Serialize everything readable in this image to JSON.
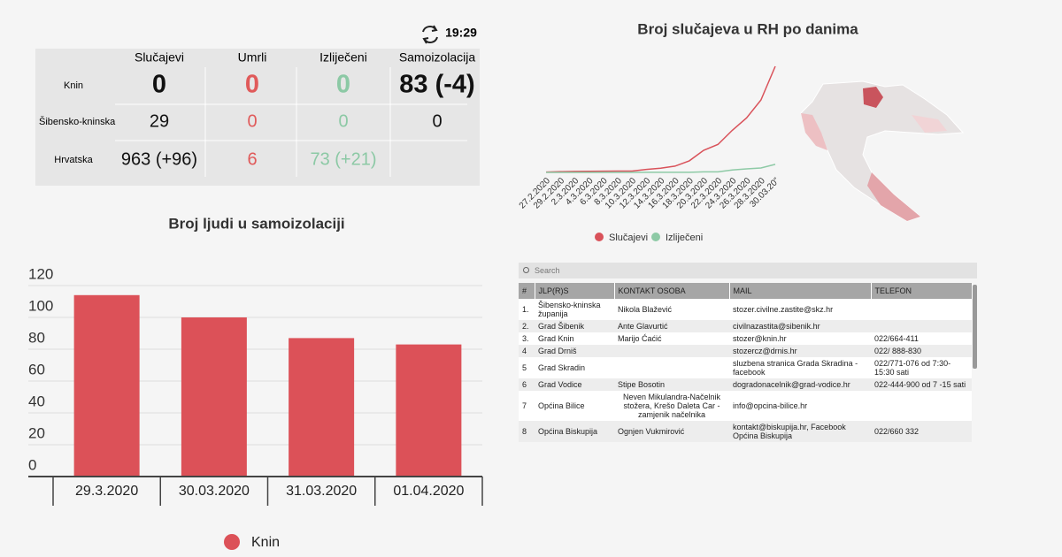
{
  "stats": {
    "time": "19:29",
    "columns": [
      "Slučajevi",
      "Umrli",
      "Izliječeni",
      "Samoizolacija"
    ],
    "rows": [
      {
        "name": "Knin",
        "cells": [
          "0",
          "0",
          "0",
          "83 (-4)"
        ]
      },
      {
        "name": "Šibensko-kninska",
        "cells": [
          "29",
          "0",
          "0",
          "0"
        ]
      },
      {
        "name": "Hrvatska",
        "cells": [
          "963 (+96)",
          "6",
          "73 (+21)"
        ]
      }
    ]
  },
  "chart_data": [
    {
      "type": "line",
      "title": "Broj slučajeva u RH po danima",
      "categories": [
        "27.2.2020",
        "29.2.2020",
        "2.3.2020",
        "4.3.2020",
        "6.3.2020",
        "8.3.2020",
        "10.3.2020",
        "12.3.2020",
        "14.3.2020",
        "16.3.2020",
        "18.3.2020",
        "20.3.2020",
        "22.3.2020",
        "24.3.2020",
        "26.3.2020",
        "28.3.2020",
        "30.03.20”"
      ],
      "series": [
        {
          "name": "Slučajevi",
          "color": "#d9525a",
          "values": [
            3,
            7,
            9,
            10,
            11,
            12,
            12,
            27,
            38,
            57,
            105,
            200,
            254,
            382,
            495,
            657,
            963
          ]
        },
        {
          "name": "Izliječeni",
          "color": "#8ecaa6",
          "values": [
            0,
            0,
            0,
            0,
            0,
            0,
            0,
            1,
            1,
            1,
            1,
            5,
            5,
            22,
            32,
            40,
            73
          ]
        }
      ]
    },
    {
      "type": "bar",
      "title": "Broj ljudi u samoizolaciji",
      "categories": [
        "29.3.2020",
        "30.03.2020",
        "31.03.2020",
        "01.04.2020"
      ],
      "series": [
        {
          "name": "Knin",
          "color": "#dc5158",
          "values": [
            114,
            100,
            87,
            83
          ]
        }
      ],
      "ylim": [
        0,
        120
      ],
      "yticks": [
        0,
        20,
        40,
        60,
        80,
        100,
        120
      ],
      "grid": true
    }
  ],
  "contacts": {
    "search": "Search",
    "headers": [
      "#",
      "JLP(R)S",
      "KONTAKT OSOBA",
      "MAIL",
      "TELEFON"
    ],
    "rows": [
      {
        "n": "1.",
        "unit": "Šibensko-kninska županija",
        "person": "Nikola Blažević",
        "mail": "stozer.civilne.zastite@skz.hr"
      },
      {
        "n": "2.",
        "unit": "Grad Šibenik",
        "person": "Ante Glavurtić",
        "mail": "civilnazastita@sibenik.hr"
      },
      {
        "n": "3.",
        "unit": "Grad Knin",
        "person": "Marijo Ćaćić",
        "mail": "stozer@knin.hr",
        "phone": "022/664-411"
      },
      {
        "n": "4",
        "unit": "Grad Drniš",
        "mail": "stozercz@drnis.hr",
        "phone": "022/ 888-830"
      },
      {
        "n": "5",
        "unit": "Grad Skradin",
        "mail": "sluzbena stranica Grada Skradina - facebook",
        "phone": "022/771-076 od 7:30-15:30 sati"
      },
      {
        "n": "6",
        "unit": "Grad Vodice",
        "person": "Stipe Bosotin",
        "mail": "dogradonacelnik@grad-vodice.hr",
        "phone": "022-444-900 od 7 -15 sati"
      },
      {
        "n": "7",
        "unit": "Općina Bilice",
        "person": "Neven Mikulandra-Načelnik stožera, Krešo Daleta Car -zamjenik načelnika",
        "mail": "info@opcina-bilice.hr"
      },
      {
        "n": "8",
        "unit": "Općina Biskupija",
        "person": "Ognjen Vukmirović",
        "mail": "kontakt@biskupija.hr, Facebook Općina Biskupija",
        "phone": "022/660 332"
      }
    ]
  }
}
